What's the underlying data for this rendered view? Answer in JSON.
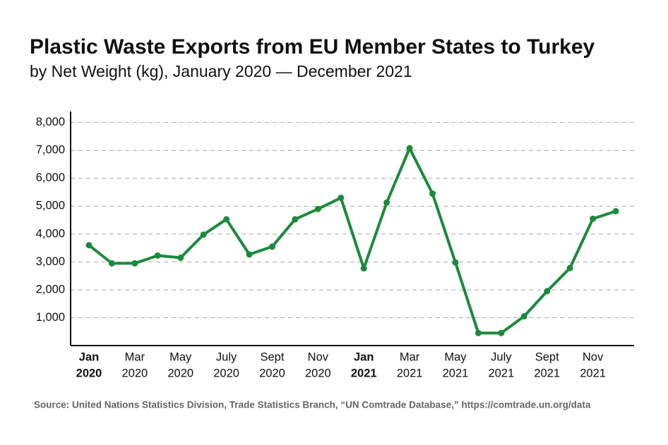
{
  "chart_data": {
    "type": "line",
    "title": "Plastic Waste Exports from EU Member States to Turkey",
    "subtitle": "by Net Weight (kg), January 2020 — December 2021",
    "source": "Source: United Nations Statistics Division, Trade Statistics Branch, “UN Comtrade Database,” https://comtrade.un.org/data",
    "categories": [
      [
        "Jan",
        "2020"
      ],
      null,
      [
        "Mar",
        "2020"
      ],
      null,
      [
        "May",
        "2020"
      ],
      null,
      [
        "July",
        "2020"
      ],
      null,
      [
        "Sept",
        "2020"
      ],
      null,
      [
        "Nov",
        "2020"
      ],
      null,
      [
        "Jan",
        "2021"
      ],
      null,
      [
        "Mar",
        "2021"
      ],
      null,
      [
        "May",
        "2021"
      ],
      null,
      [
        "July",
        "2021"
      ],
      null,
      [
        "Sept",
        "2021"
      ],
      null,
      [
        "Nov",
        "2021"
      ],
      null
    ],
    "series": [
      {
        "color": "#1b8a3c",
        "values": [
          3600,
          2950,
          2950,
          3230,
          3150,
          3980,
          4530,
          3270,
          3550,
          4530,
          4900,
          5300,
          2770,
          5130,
          7080,
          5450,
          2980,
          450,
          450,
          1050,
          1950,
          2780,
          4550,
          4820
        ]
      }
    ],
    "ylim": [
      0,
      8400
    ],
    "yticks": [
      {
        "value": 1000,
        "label": "1,000"
      },
      {
        "value": 2000,
        "label": "2,000"
      },
      {
        "value": 3000,
        "label": "3,000"
      },
      {
        "value": 4000,
        "label": "4,000"
      },
      {
        "value": 5000,
        "label": "5,000"
      },
      {
        "value": 6000,
        "label": "6,000"
      },
      {
        "value": 7000,
        "label": "7,000"
      },
      {
        "value": 8000,
        "label": "8,000"
      }
    ],
    "grid": true
  }
}
